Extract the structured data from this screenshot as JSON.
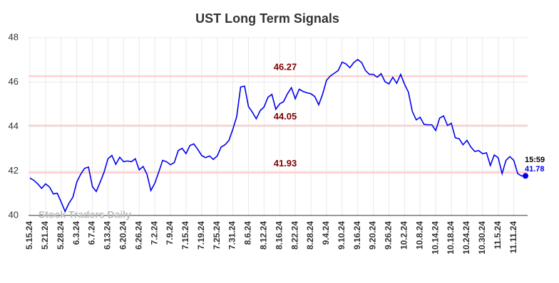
{
  "chart_data": {
    "type": "line",
    "title": "UST Long Term Signals",
    "categories": [
      "5.15.24",
      null,
      null,
      null,
      "5.21.24",
      null,
      null,
      null,
      "5.28.24",
      null,
      null,
      null,
      "6.3.24",
      null,
      null,
      null,
      "6.7.24",
      null,
      null,
      null,
      "6.13.24",
      null,
      null,
      null,
      "6.20.24",
      null,
      null,
      null,
      "6.26.24",
      null,
      null,
      null,
      "7.2.24",
      null,
      null,
      null,
      "7.9.24",
      null,
      null,
      null,
      "7.15.24",
      null,
      null,
      null,
      "7.19.24",
      null,
      null,
      null,
      "7.25.24",
      null,
      null,
      null,
      "7.31.24",
      null,
      null,
      null,
      "8.6.24",
      null,
      null,
      null,
      "8.12.24",
      null,
      null,
      null,
      "8.16.24",
      null,
      null,
      null,
      "8.22.24",
      null,
      null,
      null,
      "8.28.24",
      null,
      null,
      null,
      "9.4.24",
      null,
      null,
      null,
      "9.10.24",
      null,
      null,
      null,
      "9.16.24",
      null,
      null,
      null,
      "9.20.24",
      null,
      null,
      null,
      "9.26.24",
      null,
      null,
      null,
      "10.2.24",
      null,
      null,
      null,
      "10.8.24",
      null,
      null,
      null,
      "10.14.24",
      null,
      null,
      null,
      "10.18.24",
      null,
      null,
      null,
      "10.24.24",
      null,
      null,
      null,
      "10.30.24",
      null,
      null,
      null,
      "11.5.24",
      null,
      null,
      null,
      "11.11.24",
      null,
      null,
      null
    ],
    "values": [
      41.68,
      41.58,
      41.42,
      41.22,
      41.42,
      41.28,
      40.97,
      41.0,
      40.6,
      40.18,
      40.55,
      40.82,
      41.5,
      41.85,
      42.12,
      42.18,
      41.3,
      41.08,
      41.5,
      41.95,
      42.55,
      42.7,
      42.3,
      42.62,
      42.42,
      42.45,
      42.42,
      42.55,
      42.05,
      42.2,
      41.85,
      41.12,
      41.45,
      41.95,
      42.48,
      42.42,
      42.28,
      42.38,
      42.92,
      43.02,
      42.78,
      43.15,
      43.22,
      42.98,
      42.7,
      42.6,
      42.68,
      42.52,
      42.68,
      43.08,
      43.18,
      43.38,
      43.88,
      44.45,
      45.78,
      45.82,
      44.9,
      44.65,
      44.35,
      44.72,
      44.88,
      45.32,
      45.45,
      44.78,
      45.02,
      45.12,
      45.48,
      45.75,
      45.25,
      45.68,
      45.58,
      45.52,
      45.48,
      45.35,
      44.98,
      45.45,
      46.08,
      46.28,
      46.4,
      46.52,
      46.9,
      46.82,
      46.65,
      46.88,
      47.02,
      46.88,
      46.52,
      46.35,
      46.35,
      46.22,
      46.38,
      46.02,
      45.92,
      46.22,
      45.95,
      46.35,
      45.9,
      45.55,
      44.68,
      44.3,
      44.42,
      44.1,
      44.08,
      44.08,
      43.82,
      44.38,
      44.48,
      44.05,
      44.15,
      43.5,
      43.45,
      43.18,
      43.38,
      43.08,
      42.88,
      42.92,
      42.78,
      42.82,
      42.25,
      42.72,
      42.6,
      41.88,
      42.48,
      42.65,
      42.48,
      41.88,
      41.78,
      41.78
    ],
    "color": "#0000ee",
    "ylim": [
      40,
      48
    ],
    "yticks": [
      40,
      42,
      44,
      46,
      48
    ],
    "grid": true,
    "reference_lines": [
      46.27,
      44.05,
      41.93
    ],
    "reference_color": "#ffc8c8",
    "reference_label_color": "#800000",
    "last_time": "15:59",
    "watermark": "Stock Traders Daily"
  }
}
